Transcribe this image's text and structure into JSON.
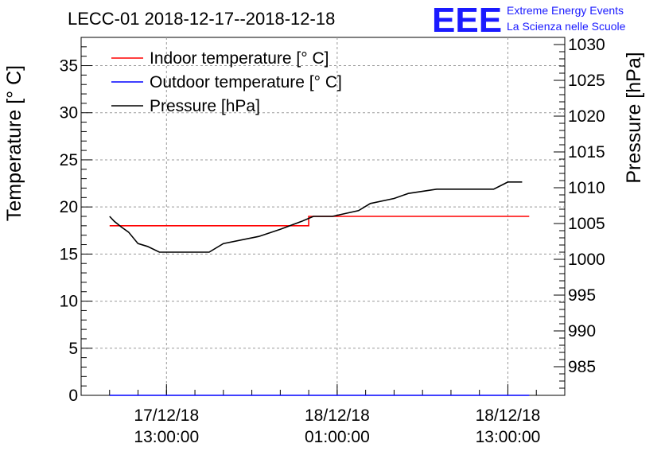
{
  "chart_data": {
    "type": "line",
    "title": "LECC-01 2018-12-17--2018-12-18",
    "ylabel": "Temperature [° C]",
    "y2label": "Pressure [hPa]",
    "xlabel": "",
    "ylim": [
      0,
      38
    ],
    "y2lim": [
      981,
      1031
    ],
    "xlim": [
      "2018-12-17 07:00",
      "2018-12-18 17:00"
    ],
    "grid": true,
    "legend_position": "top-left",
    "yticks": [
      0,
      5,
      10,
      15,
      20,
      25,
      30,
      35
    ],
    "y2ticks": [
      985,
      990,
      995,
      1000,
      1005,
      1010,
      1015,
      1020,
      1025,
      1030
    ],
    "xticks": [
      {
        "date": "17/12/18",
        "time": "13:00:00",
        "x": "2018-12-17 13:00"
      },
      {
        "date": "18/12/18",
        "time": "01:00:00",
        "x": "2018-12-18 01:00"
      },
      {
        "date": "18/12/18",
        "time": "13:00:00",
        "x": "2018-12-18 13:00"
      }
    ],
    "series": [
      {
        "name": "Indoor temperature [° C]",
        "axis": "left",
        "color": "#ff0000",
        "x": [
          "2018-12-17 09:00",
          "2018-12-17 23:00",
          "2018-12-17 23:00",
          "2018-12-18 14:30"
        ],
        "y": [
          18.0,
          18.0,
          19.0,
          19.0
        ]
      },
      {
        "name": "Outdoor temperature [° C]",
        "axis": "left",
        "color": "#0000ff",
        "x": [
          "2018-12-17 09:00",
          "2018-12-18 14:30"
        ],
        "y": [
          0.0,
          0.0
        ]
      },
      {
        "name": "Pressure [hPa]",
        "axis": "right",
        "color": "#000000",
        "x": [
          "2018-12-17 09:00",
          "2018-12-17 09:20",
          "2018-12-17 09:50",
          "2018-12-17 10:20",
          "2018-12-17 11:00",
          "2018-12-17 11:40",
          "2018-12-17 12:30",
          "2018-12-17 16:00",
          "2018-12-17 17:00",
          "2018-12-17 19:30",
          "2018-12-17 21:00",
          "2018-12-17 22:30",
          "2018-12-17 23:20",
          "2018-12-18 00:40",
          "2018-12-18 02:30",
          "2018-12-18 03:20",
          "2018-12-18 05:00",
          "2018-12-18 06:00",
          "2018-12-18 08:00",
          "2018-12-18 12:00",
          "2018-12-18 13:00",
          "2018-12-18 14:00"
        ],
        "y": [
          1006.0,
          1005.3,
          1004.5,
          1003.8,
          1002.2,
          1001.8,
          1001.0,
          1001.0,
          1002.2,
          1003.2,
          1004.2,
          1005.3,
          1006.0,
          1006.0,
          1006.8,
          1007.8,
          1008.5,
          1009.2,
          1009.8,
          1009.8,
          1010.8,
          1010.8
        ]
      }
    ]
  },
  "logo": {
    "mark": "EEE",
    "line1": "Extreme Energy Events",
    "line2": "La Scienza nelle Scuole"
  }
}
